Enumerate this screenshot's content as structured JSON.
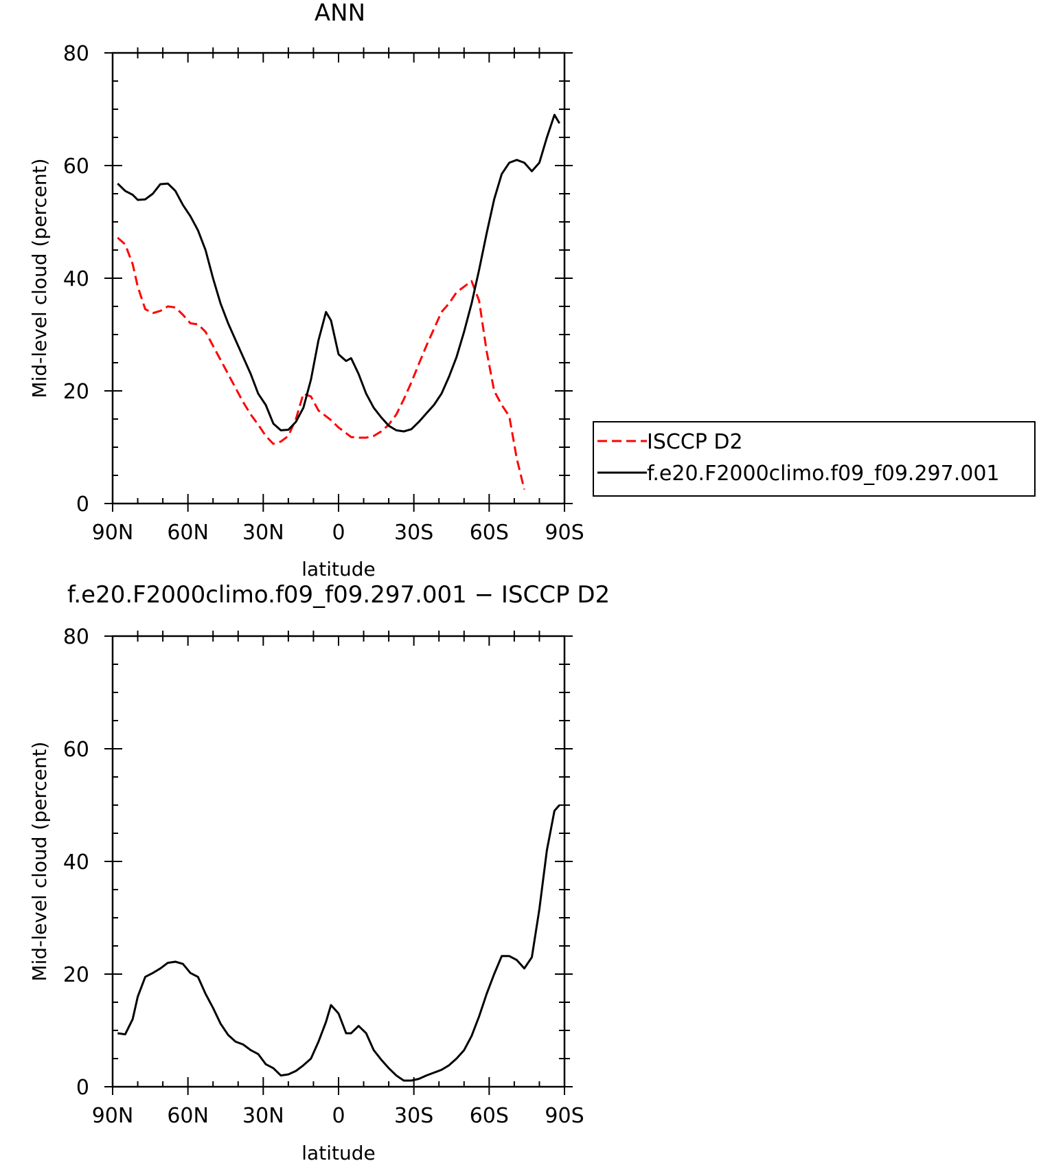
{
  "chart_data": [
    {
      "type": "line",
      "title": "ANN",
      "xlabel": "latitude",
      "ylabel": "Mid-level cloud (percent)",
      "xlim": [
        90,
        -90
      ],
      "ylim": [
        0,
        80
      ],
      "xticks": [
        {
          "value": 90,
          "label": "90N"
        },
        {
          "value": 60,
          "label": "60N"
        },
        {
          "value": 30,
          "label": "30N"
        },
        {
          "value": 0,
          "label": "0"
        },
        {
          "value": -30,
          "label": "30S"
        },
        {
          "value": -60,
          "label": "60S"
        },
        {
          "value": -90,
          "label": "90S"
        }
      ],
      "yticks": [
        {
          "value": 0,
          "label": "0"
        },
        {
          "value": 20,
          "label": "20"
        },
        {
          "value": 40,
          "label": "40"
        },
        {
          "value": 60,
          "label": "60"
        },
        {
          "value": 80,
          "label": "80"
        }
      ],
      "legend": {
        "placement": "right",
        "entries": [
          "ISCCP D2",
          "f.e20.F2000climo.f09_f09.297.001"
        ]
      },
      "x": [
        88,
        85,
        82,
        80,
        77,
        74,
        71,
        68,
        65,
        62,
        59,
        56,
        53,
        50,
        47,
        44,
        41,
        38,
        35,
        32,
        29,
        26,
        23,
        20,
        17,
        14,
        11,
        8,
        5,
        3,
        0,
        -3,
        -5,
        -8,
        -11,
        -14,
        -17,
        -20,
        -23,
        -26,
        -29,
        -32,
        -35,
        -38,
        -41,
        -44,
        -47,
        -50,
        -53,
        -56,
        -59,
        -62,
        -65,
        -68,
        -71,
        -74,
        -77,
        -80,
        -83,
        -86,
        -88
      ],
      "series": [
        {
          "name": "ISCCP D2",
          "color": "#ff0000",
          "dash": "dashed",
          "values": [
            47.2,
            46,
            42.5,
            38.5,
            34.5,
            33.8,
            34.2,
            35,
            34.8,
            33.5,
            32,
            31.8,
            30.5,
            28,
            25.5,
            23,
            20.5,
            18,
            15.8,
            14,
            12,
            10.6,
            11,
            12,
            15,
            19.5,
            19,
            16.5,
            15.5,
            14.8,
            13.5,
            12.5,
            11.8,
            11.7,
            11.7,
            12,
            12.8,
            14,
            15.8,
            18.5,
            21.5,
            24.8,
            28,
            31,
            34,
            35.5,
            37.5,
            38.5,
            39.5,
            36,
            27,
            20,
            17.5,
            15.5,
            8,
            2.5,
            null,
            null,
            null,
            null,
            null
          ]
        },
        {
          "name": "f.e20.F2000climo.f09_f09.297.001",
          "color": "#000000",
          "dash": "solid",
          "values": [
            56.8,
            55.5,
            54.8,
            53.9,
            54,
            55,
            56.7,
            56.8,
            55.5,
            53,
            51,
            48.5,
            45,
            40,
            35.5,
            32,
            29,
            26,
            23,
            19.5,
            17.5,
            14.2,
            13,
            13.1,
            14.5,
            17,
            22,
            29,
            34,
            32.5,
            26.5,
            25.3,
            25.8,
            23,
            19.5,
            17,
            15.3,
            13.8,
            13,
            12.8,
            13.2,
            14.5,
            16,
            17.5,
            19.5,
            22.5,
            26,
            30.5,
            35.5,
            41.5,
            48,
            54,
            58.5,
            60.5,
            61,
            60.5,
            59,
            60.5,
            65,
            69,
            67.5
          ]
        }
      ]
    },
    {
      "type": "line",
      "title": "f.e20.F2000climo.f09_f09.297.001 − ISCCP D2",
      "xlabel": "latitude",
      "ylabel": "Mid-level cloud (percent)",
      "xlim": [
        90,
        -90
      ],
      "ylim": [
        0,
        80
      ],
      "xticks": [
        {
          "value": 90,
          "label": "90N"
        },
        {
          "value": 60,
          "label": "60N"
        },
        {
          "value": 30,
          "label": "30N"
        },
        {
          "value": 0,
          "label": "0"
        },
        {
          "value": -30,
          "label": "30S"
        },
        {
          "value": -60,
          "label": "60S"
        },
        {
          "value": -90,
          "label": "90S"
        }
      ],
      "yticks": [
        {
          "value": 0,
          "label": "0"
        },
        {
          "value": 20,
          "label": "20"
        },
        {
          "value": 40,
          "label": "40"
        },
        {
          "value": 60,
          "label": "60"
        },
        {
          "value": 80,
          "label": "80"
        }
      ],
      "x": [
        88,
        85,
        82,
        80,
        77,
        74,
        71,
        68,
        65,
        62,
        59,
        56,
        53,
        50,
        47,
        44,
        41,
        38,
        35,
        32,
        29,
        26,
        23,
        20,
        17,
        14,
        11,
        8,
        5,
        3,
        0,
        -3,
        -5,
        -8,
        -11,
        -14,
        -17,
        -20,
        -23,
        -26,
        -29,
        -32,
        -35,
        -38,
        -41,
        -44,
        -47,
        -50,
        -53,
        -56,
        -59,
        -62,
        -65,
        -68,
        -71,
        -74,
        -77,
        -80,
        -83,
        -86,
        -88
      ],
      "series": [
        {
          "color": "#000000",
          "dash": "solid",
          "values": [
            9.5,
            9.3,
            12,
            16,
            19.5,
            20.2,
            21,
            22,
            22.2,
            21.8,
            20.2,
            19.5,
            16.5,
            14,
            11.2,
            9.2,
            8,
            7.5,
            6.5,
            5.8,
            4,
            3.3,
            2,
            2.2,
            2.8,
            3.8,
            5,
            8,
            11.5,
            14.5,
            13,
            9.5,
            9.5,
            10.8,
            9.5,
            6.5,
            4.8,
            3.3,
            2,
            1.1,
            1.1,
            1.4,
            2,
            2.5,
            3,
            3.8,
            5,
            6.5,
            9,
            12.5,
            16.5,
            20,
            23.2,
            23.2,
            22.5,
            21,
            23,
            31.5,
            42,
            49,
            50
          ]
        }
      ]
    }
  ]
}
